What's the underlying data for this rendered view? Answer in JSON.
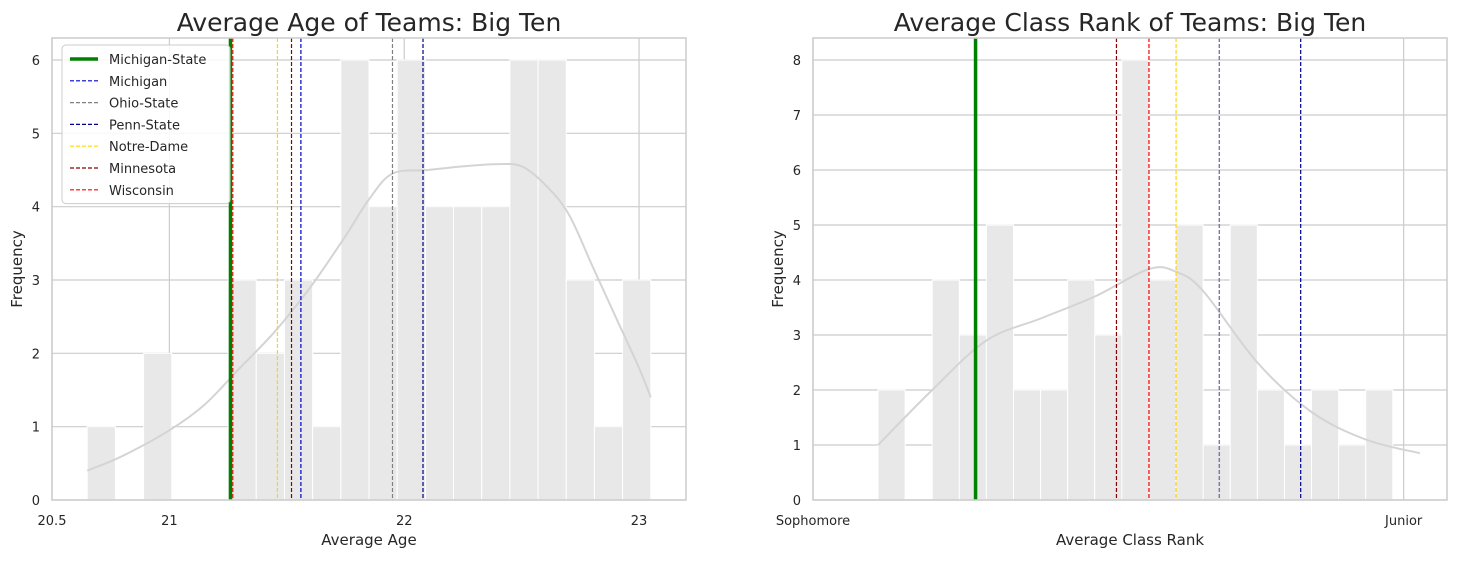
{
  "colors": {
    "bar": "#e8e8e8",
    "grid": "#cccccc",
    "kde": "#d4d4d4",
    "axes_edge": "#cccccc"
  },
  "chart_data": [
    {
      "type": "bar",
      "title": "Average Age of Teams: Big Ten",
      "xlabel": "Average Age",
      "ylabel": "Frequency",
      "xlim": [
        20.5,
        23.2
      ],
      "ylim": [
        0,
        6.3
      ],
      "grid": true,
      "legend_placement": "top-left",
      "x_ticks": [
        20.5,
        21,
        22,
        23
      ],
      "x_tick_labels": [
        "20.5",
        "21",
        "22",
        "23"
      ],
      "y_ticks": [
        0,
        1,
        2,
        3,
        4,
        5,
        6
      ],
      "y_tick_labels": [
        "0",
        "1",
        "2",
        "3",
        "4",
        "5",
        "6"
      ],
      "bins": [
        {
          "x0": 20.65,
          "x1": 20.77,
          "value": 1
        },
        {
          "x0": 20.89,
          "x1": 21.01,
          "value": 2
        },
        {
          "x0": 21.25,
          "x1": 21.37,
          "value": 3
        },
        {
          "x0": 21.37,
          "x1": 21.49,
          "value": 2
        },
        {
          "x0": 21.49,
          "x1": 21.61,
          "value": 3
        },
        {
          "x0": 21.61,
          "x1": 21.73,
          "value": 1
        },
        {
          "x0": 21.73,
          "x1": 21.85,
          "value": 6
        },
        {
          "x0": 21.85,
          "x1": 21.97,
          "value": 4
        },
        {
          "x0": 21.97,
          "x1": 22.09,
          "value": 6
        },
        {
          "x0": 22.09,
          "x1": 22.21,
          "value": 4
        },
        {
          "x0": 22.21,
          "x1": 22.33,
          "value": 4
        },
        {
          "x0": 22.33,
          "x1": 22.45,
          "value": 4
        },
        {
          "x0": 22.45,
          "x1": 22.57,
          "value": 6
        },
        {
          "x0": 22.57,
          "x1": 22.69,
          "value": 6
        },
        {
          "x0": 22.69,
          "x1": 22.81,
          "value": 3
        },
        {
          "x0": 22.81,
          "x1": 22.93,
          "value": 1
        },
        {
          "x0": 22.93,
          "x1": 23.05,
          "value": 3
        }
      ],
      "kde": {
        "x": [
          20.65,
          20.8,
          21.0,
          21.15,
          21.3,
          21.45,
          21.6,
          21.75,
          21.85,
          21.95,
          22.1,
          22.25,
          22.4,
          22.5,
          22.6,
          22.7,
          22.8,
          22.9,
          23.0,
          23.05
        ],
        "y": [
          0.4,
          0.6,
          0.95,
          1.3,
          1.8,
          2.3,
          2.9,
          3.6,
          4.1,
          4.45,
          4.5,
          4.55,
          4.58,
          4.55,
          4.3,
          3.9,
          3.2,
          2.5,
          1.8,
          1.4
        ]
      },
      "series": [
        {
          "name": "Michigan-State",
          "x": 21.26,
          "color": "#008000",
          "style": "solid",
          "width": 3.5
        },
        {
          "name": "Michigan",
          "x": 21.56,
          "color": "#0000cd",
          "style": "dashed",
          "width": 1.2
        },
        {
          "name": "Ohio-State",
          "x": 21.95,
          "color": "#808080",
          "style": "dashed",
          "width": 1.2
        },
        {
          "name": "Penn-State",
          "x": 22.08,
          "color": "#00008b",
          "style": "dashed",
          "width": 1.2
        },
        {
          "name": "Notre-Dame",
          "x": 21.46,
          "color": "#ffd700",
          "style": "dashed",
          "width": 1.2
        },
        {
          "name": "Minnesota",
          "x": 21.52,
          "color": "#8b0000",
          "style": "dashed",
          "width": 1.2
        },
        {
          "name": "Wisconsin",
          "x": 21.27,
          "color": "#ff0000",
          "style": "dashed",
          "width": 1.2
        }
      ]
    },
    {
      "type": "bar",
      "title": "Average Class Rank of Teams: Big Ten",
      "xlabel": "Average Class Rank",
      "ylabel": "Frequency",
      "xlim": [
        1.88,
        3.05
      ],
      "ylim": [
        0,
        8.4
      ],
      "grid": true,
      "x_ticks": [
        1.88,
        2.97
      ],
      "x_tick_labels": [
        "Sophomore",
        "Junior"
      ],
      "y_ticks": [
        0,
        1,
        2,
        3,
        4,
        5,
        6,
        7,
        8
      ],
      "y_tick_labels": [
        "0",
        "1",
        "2",
        "3",
        "4",
        "5",
        "6",
        "7",
        "8"
      ],
      "bins": [
        {
          "x0": 2.0,
          "x1": 2.05,
          "value": 2
        },
        {
          "x0": 2.1,
          "x1": 2.15,
          "value": 4
        },
        {
          "x0": 2.15,
          "x1": 2.2,
          "value": 3
        },
        {
          "x0": 2.2,
          "x1": 2.25,
          "value": 5
        },
        {
          "x0": 2.25,
          "x1": 2.3,
          "value": 2
        },
        {
          "x0": 2.3,
          "x1": 2.35,
          "value": 2
        },
        {
          "x0": 2.35,
          "x1": 2.4,
          "value": 4
        },
        {
          "x0": 2.4,
          "x1": 2.45,
          "value": 3
        },
        {
          "x0": 2.45,
          "x1": 2.5,
          "value": 8
        },
        {
          "x0": 2.5,
          "x1": 2.55,
          "value": 4
        },
        {
          "x0": 2.55,
          "x1": 2.6,
          "value": 5
        },
        {
          "x0": 2.6,
          "x1": 2.65,
          "value": 1
        },
        {
          "x0": 2.65,
          "x1": 2.7,
          "value": 5
        },
        {
          "x0": 2.7,
          "x1": 2.75,
          "value": 2
        },
        {
          "x0": 2.75,
          "x1": 2.8,
          "value": 1
        },
        {
          "x0": 2.8,
          "x1": 2.85,
          "value": 2
        },
        {
          "x0": 2.85,
          "x1": 2.9,
          "value": 1
        },
        {
          "x0": 2.9,
          "x1": 2.95,
          "value": 2
        }
      ],
      "kde": {
        "x": [
          2.0,
          2.1,
          2.2,
          2.3,
          2.4,
          2.5,
          2.55,
          2.6,
          2.7,
          2.8,
          2.9,
          3.0
        ],
        "y": [
          1.0,
          2.0,
          2.9,
          3.3,
          3.7,
          4.2,
          4.15,
          3.8,
          2.5,
          1.6,
          1.1,
          0.85
        ]
      },
      "series": [
        {
          "name": "Michigan-State",
          "x": 2.18,
          "color": "#008000",
          "style": "solid",
          "width": 3.5
        },
        {
          "name": "Michigan",
          "x": 2.63,
          "color": "#0000cd",
          "style": "dashed",
          "width": 1.2
        },
        {
          "name": "Ohio-State",
          "x": 2.63,
          "color": "#808080",
          "style": "dashed",
          "width": 1.2
        },
        {
          "name": "Penn-State",
          "x": 2.78,
          "color": "#00008b",
          "style": "dashed",
          "width": 1.2
        },
        {
          "name": "Notre-Dame",
          "x": 2.55,
          "color": "#ffd700",
          "style": "dashed",
          "width": 1.2
        },
        {
          "name": "Minnesota",
          "x": 2.44,
          "color": "#8b0000",
          "style": "dashed",
          "width": 1.2
        },
        {
          "name": "Wisconsin",
          "x": 2.5,
          "color": "#ff0000",
          "style": "dashed",
          "width": 1.2
        }
      ]
    }
  ]
}
